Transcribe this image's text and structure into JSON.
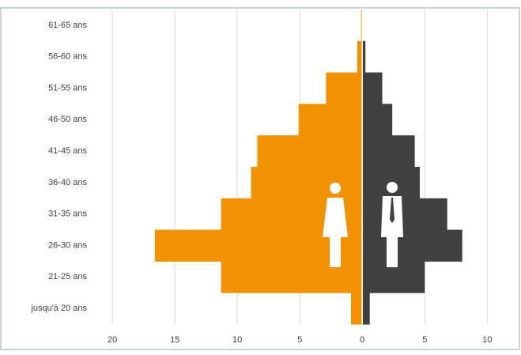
{
  "chart_data": {
    "type": "pyramid",
    "categories": [
      "61-65 ans",
      "56-60 ans",
      "51-55 ans",
      "46-50 ans",
      "41-45 ans",
      "36-40 ans",
      "31-35 ans",
      "26-30 ans",
      "21-25 ans",
      "jusqu'à 20 ans"
    ],
    "series": [
      {
        "color": "#f39200",
        "values": [
          -0.1,
          -0.4,
          -2.9,
          -5.1,
          -8.4,
          -8.9,
          -11.3,
          -16.6,
          -11.3,
          -0.9
        ]
      },
      {
        "color": "#404040",
        "values": [
          0,
          0.25,
          1.6,
          2.4,
          4.2,
          4.6,
          6.8,
          8.0,
          5.0,
          0.6
        ]
      }
    ],
    "xlim": [
      -21.4,
      11.5
    ],
    "xticks": [
      {
        "value": -20,
        "label": "20"
      },
      {
        "value": -15,
        "label": "15"
      },
      {
        "value": -10,
        "label": "10"
      },
      {
        "value": -5,
        "label": "5"
      },
      0,
      5,
      10
    ],
    "grid": true
  }
}
